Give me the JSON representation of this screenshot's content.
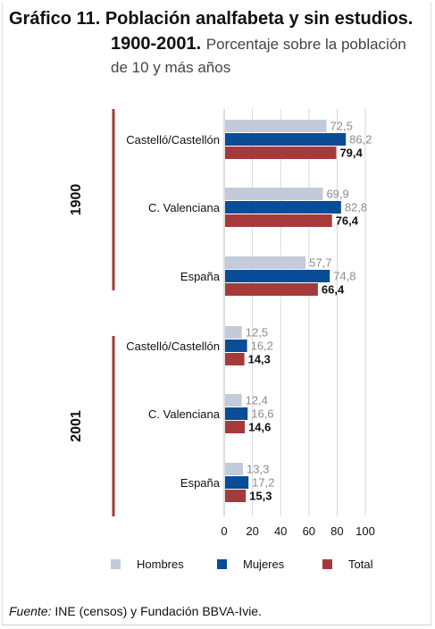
{
  "header": {
    "title_line1": "Gráfico 11. Población analfabeta y sin estudios.",
    "title_line2_bold": "1900-2001.",
    "title_line2_rest": "Porcentaje sobre la población",
    "title_line3": "de 10 y más años"
  },
  "source": {
    "label": "Fuente:",
    "text": "INE (censos) y Fundación BBVA-Ivie."
  },
  "colors": {
    "hombres": "#c3cad9",
    "mujeres": "#0a4c96",
    "total": "#a63a3a",
    "group_line": "#a63a3a",
    "grid": "#d9d9d9",
    "label_gray": "#8c8c8c"
  },
  "chart_data": {
    "type": "bar",
    "orientation": "horizontal",
    "groups": [
      {
        "name": "1900",
        "categories": [
          "Castelló/Castellón",
          "C. Valenciana",
          "España"
        ]
      },
      {
        "name": "2001",
        "categories": [
          "Castelló/Castellón",
          "C. Valenciana",
          "España"
        ]
      }
    ],
    "series": [
      {
        "name": "Hombres",
        "values": [
          72.5,
          69.9,
          57.7,
          12.5,
          12.4,
          13.3
        ],
        "labels": [
          "72,5",
          "69,9",
          "57,7",
          "12,5",
          "12,4",
          "13,3"
        ]
      },
      {
        "name": "Mujeres",
        "values": [
          86.2,
          82.8,
          74.8,
          16.2,
          16.6,
          17.2
        ],
        "labels": [
          "86,2",
          "82,8",
          "74,8",
          "16,2",
          "16,6",
          "17,2"
        ]
      },
      {
        "name": "Total",
        "values": [
          79.4,
          76.4,
          66.4,
          14.3,
          14.6,
          15.3
        ],
        "labels": [
          "79,4",
          "76,4",
          "66,4",
          "14,3",
          "14,6",
          "15,3"
        ]
      }
    ],
    "xlim": [
      0,
      100
    ],
    "x_ticks": [
      "0",
      "20",
      "40",
      "60",
      "80",
      "100"
    ],
    "grid": true,
    "legend_position": "bottom"
  }
}
